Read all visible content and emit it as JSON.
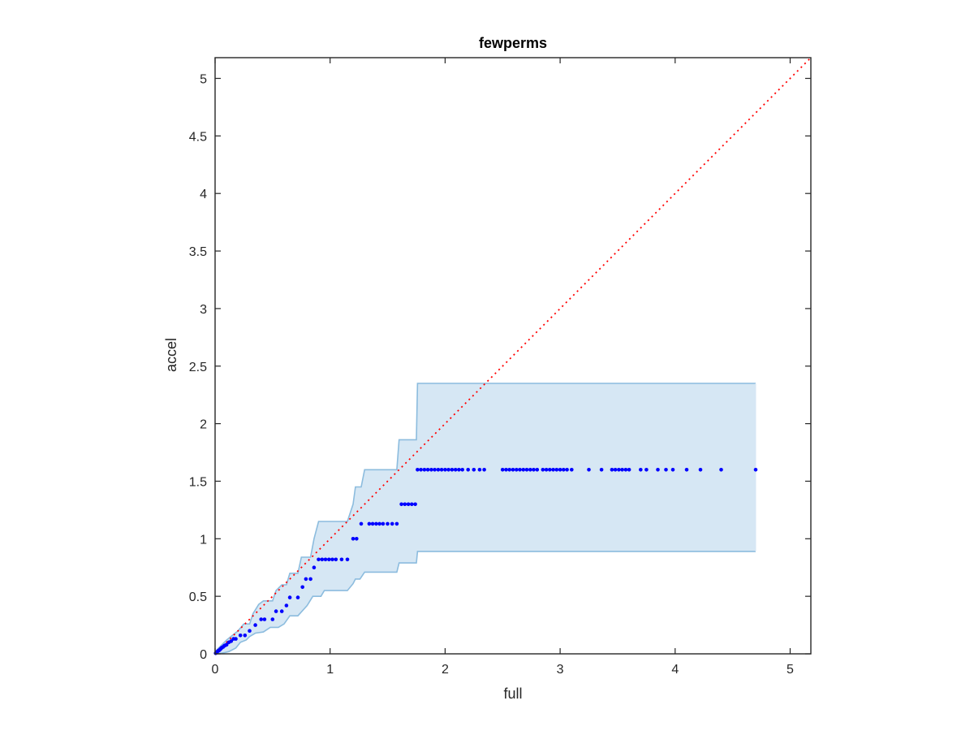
{
  "chart_data": {
    "type": "scatter",
    "title": "fewperms",
    "xlabel": "full",
    "ylabel": "accel",
    "xlim": [
      0,
      5.18
    ],
    "ylim": [
      0,
      5.18
    ],
    "xticks": [
      0,
      1,
      2,
      3,
      4,
      5
    ],
    "yticks": [
      0,
      0.5,
      1,
      1.5,
      2,
      2.5,
      3,
      3.5,
      4,
      4.5,
      5
    ],
    "xtick_labels": [
      "0",
      "1",
      "2",
      "3",
      "4",
      "5"
    ],
    "ytick_labels": [
      "0",
      "0.5",
      "1",
      "1.5",
      "2",
      "2.5",
      "3",
      "3.5",
      "4",
      "4.5",
      "5"
    ],
    "grid": false,
    "colors": {
      "points": "#0000ff",
      "band_fill": "#d6e7f4",
      "band_edge": "#8cbcde",
      "reference_line": "#ff0000",
      "axes": "#262626"
    },
    "reference_line": {
      "style": "dotted",
      "from": [
        0,
        0
      ],
      "to": [
        5.18,
        5.18
      ]
    },
    "band": {
      "upper": [
        [
          0,
          0
        ],
        [
          0.02,
          0.04
        ],
        [
          0.05,
          0.07
        ],
        [
          0.1,
          0.12
        ],
        [
          0.15,
          0.16
        ],
        [
          0.2,
          0.2
        ],
        [
          0.25,
          0.26
        ],
        [
          0.3,
          0.26
        ],
        [
          0.33,
          0.35
        ],
        [
          0.38,
          0.43
        ],
        [
          0.42,
          0.46
        ],
        [
          0.5,
          0.46
        ],
        [
          0.53,
          0.55
        ],
        [
          0.58,
          0.6
        ],
        [
          0.62,
          0.6
        ],
        [
          0.65,
          0.7
        ],
        [
          0.72,
          0.7
        ],
        [
          0.75,
          0.84
        ],
        [
          0.83,
          0.84
        ],
        [
          0.86,
          1.0
        ],
        [
          0.9,
          1.15
        ],
        [
          1.15,
          1.15
        ],
        [
          1.2,
          1.3
        ],
        [
          1.22,
          1.45
        ],
        [
          1.27,
          1.45
        ],
        [
          1.3,
          1.6
        ],
        [
          1.58,
          1.6
        ],
        [
          1.6,
          1.86
        ],
        [
          1.75,
          1.86
        ],
        [
          1.76,
          2.35
        ],
        [
          4.7,
          2.35
        ]
      ],
      "lower": [
        [
          4.7,
          0.89
        ],
        [
          1.76,
          0.89
        ],
        [
          1.75,
          0.79
        ],
        [
          1.6,
          0.79
        ],
        [
          1.58,
          0.71
        ],
        [
          1.3,
          0.71
        ],
        [
          1.26,
          0.65
        ],
        [
          1.22,
          0.65
        ],
        [
          1.2,
          0.61
        ],
        [
          1.15,
          0.55
        ],
        [
          0.95,
          0.55
        ],
        [
          0.92,
          0.5
        ],
        [
          0.85,
          0.5
        ],
        [
          0.8,
          0.42
        ],
        [
          0.72,
          0.33
        ],
        [
          0.65,
          0.33
        ],
        [
          0.6,
          0.26
        ],
        [
          0.55,
          0.23
        ],
        [
          0.48,
          0.23
        ],
        [
          0.42,
          0.19
        ],
        [
          0.35,
          0.18
        ],
        [
          0.3,
          0.15
        ],
        [
          0.27,
          0.12
        ],
        [
          0.22,
          0.1
        ],
        [
          0.18,
          0.05
        ],
        [
          0.12,
          0.02
        ],
        [
          0.08,
          0.01
        ],
        [
          0.05,
          0.005
        ],
        [
          0,
          0
        ]
      ]
    },
    "points": [
      [
        0.005,
        0.005
      ],
      [
        0.01,
        0.01
      ],
      [
        0.015,
        0.012
      ],
      [
        0.02,
        0.02
      ],
      [
        0.025,
        0.025
      ],
      [
        0.03,
        0.028
      ],
      [
        0.035,
        0.03
      ],
      [
        0.04,
        0.035
      ],
      [
        0.045,
        0.04
      ],
      [
        0.05,
        0.045
      ],
      [
        0.055,
        0.05
      ],
      [
        0.06,
        0.055
      ],
      [
        0.07,
        0.06
      ],
      [
        0.08,
        0.07
      ],
      [
        0.09,
        0.075
      ],
      [
        0.1,
        0.08
      ],
      [
        0.12,
        0.1
      ],
      [
        0.14,
        0.11
      ],
      [
        0.16,
        0.13
      ],
      [
        0.18,
        0.13
      ],
      [
        0.22,
        0.16
      ],
      [
        0.26,
        0.16
      ],
      [
        0.3,
        0.2
      ],
      [
        0.35,
        0.25
      ],
      [
        0.4,
        0.3
      ],
      [
        0.43,
        0.3
      ],
      [
        0.5,
        0.3
      ],
      [
        0.53,
        0.37
      ],
      [
        0.58,
        0.37
      ],
      [
        0.62,
        0.42
      ],
      [
        0.65,
        0.49
      ],
      [
        0.72,
        0.49
      ],
      [
        0.76,
        0.58
      ],
      [
        0.79,
        0.65
      ],
      [
        0.83,
        0.65
      ],
      [
        0.86,
        0.75
      ],
      [
        0.9,
        0.82
      ],
      [
        0.93,
        0.82
      ],
      [
        0.96,
        0.82
      ],
      [
        0.99,
        0.82
      ],
      [
        1.02,
        0.82
      ],
      [
        1.05,
        0.82
      ],
      [
        1.1,
        0.82
      ],
      [
        1.15,
        0.82
      ],
      [
        1.2,
        1.0
      ],
      [
        1.23,
        1.0
      ],
      [
        1.27,
        1.13
      ],
      [
        1.34,
        1.13
      ],
      [
        1.37,
        1.13
      ],
      [
        1.4,
        1.13
      ],
      [
        1.43,
        1.13
      ],
      [
        1.46,
        1.13
      ],
      [
        1.5,
        1.13
      ],
      [
        1.54,
        1.13
      ],
      [
        1.58,
        1.13
      ],
      [
        1.62,
        1.3
      ],
      [
        1.65,
        1.3
      ],
      [
        1.68,
        1.3
      ],
      [
        1.71,
        1.3
      ],
      [
        1.74,
        1.3
      ],
      [
        1.76,
        1.6
      ],
      [
        1.79,
        1.6
      ],
      [
        1.82,
        1.6
      ],
      [
        1.85,
        1.6
      ],
      [
        1.88,
        1.6
      ],
      [
        1.91,
        1.6
      ],
      [
        1.94,
        1.6
      ],
      [
        1.97,
        1.6
      ],
      [
        2.0,
        1.6
      ],
      [
        2.03,
        1.6
      ],
      [
        2.06,
        1.6
      ],
      [
        2.09,
        1.6
      ],
      [
        2.12,
        1.6
      ],
      [
        2.15,
        1.6
      ],
      [
        2.2,
        1.6
      ],
      [
        2.25,
        1.6
      ],
      [
        2.3,
        1.6
      ],
      [
        2.34,
        1.6
      ],
      [
        2.5,
        1.6
      ],
      [
        2.53,
        1.6
      ],
      [
        2.56,
        1.6
      ],
      [
        2.59,
        1.6
      ],
      [
        2.62,
        1.6
      ],
      [
        2.65,
        1.6
      ],
      [
        2.68,
        1.6
      ],
      [
        2.71,
        1.6
      ],
      [
        2.74,
        1.6
      ],
      [
        2.77,
        1.6
      ],
      [
        2.8,
        1.6
      ],
      [
        2.85,
        1.6
      ],
      [
        2.88,
        1.6
      ],
      [
        2.91,
        1.6
      ],
      [
        2.94,
        1.6
      ],
      [
        2.97,
        1.6
      ],
      [
        3.0,
        1.6
      ],
      [
        3.03,
        1.6
      ],
      [
        3.06,
        1.6
      ],
      [
        3.1,
        1.6
      ],
      [
        3.25,
        1.6
      ],
      [
        3.36,
        1.6
      ],
      [
        3.45,
        1.6
      ],
      [
        3.48,
        1.6
      ],
      [
        3.51,
        1.6
      ],
      [
        3.54,
        1.6
      ],
      [
        3.57,
        1.6
      ],
      [
        3.6,
        1.6
      ],
      [
        3.7,
        1.6
      ],
      [
        3.75,
        1.6
      ],
      [
        3.85,
        1.6
      ],
      [
        3.92,
        1.6
      ],
      [
        3.98,
        1.6
      ],
      [
        4.1,
        1.6
      ],
      [
        4.22,
        1.6
      ],
      [
        4.4,
        1.6
      ],
      [
        4.7,
        1.6
      ]
    ]
  }
}
